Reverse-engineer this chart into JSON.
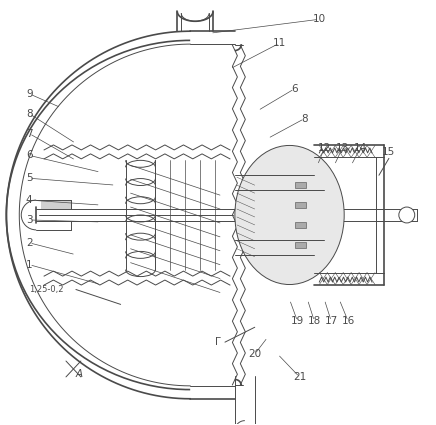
{
  "background_color": "#ffffff",
  "line_color": "#4a4a4a",
  "label_color": "#4a4a4a",
  "figsize": [
    4.36,
    4.25
  ],
  "dpi": 100,
  "gray_fill": "#c8c8c8",
  "light_gray": "#e0e0e0",
  "hatch_gray": "#b0b0b0"
}
